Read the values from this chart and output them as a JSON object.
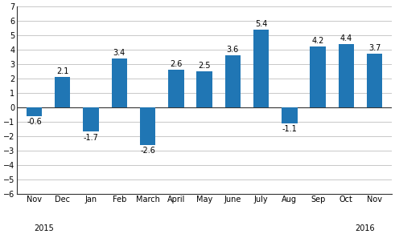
{
  "categories": [
    "Nov",
    "Dec",
    "Jan",
    "Feb",
    "March",
    "April",
    "May",
    "June",
    "July",
    "Aug",
    "Sep",
    "Oct",
    "Nov"
  ],
  "values": [
    -0.6,
    2.1,
    -1.7,
    3.4,
    -2.6,
    2.6,
    2.5,
    3.6,
    5.4,
    -1.1,
    4.2,
    4.4,
    3.7
  ],
  "bar_color": "#2076b4",
  "year_labels": [
    [
      "2015",
      0
    ],
    [
      "2016",
      12
    ]
  ],
  "ylim": [
    -6,
    7
  ],
  "label_fontsize": 7,
  "bar_label_fontsize": 7,
  "background_color": "#ffffff",
  "grid_color": "#c8c8c8",
  "bar_width": 0.55
}
